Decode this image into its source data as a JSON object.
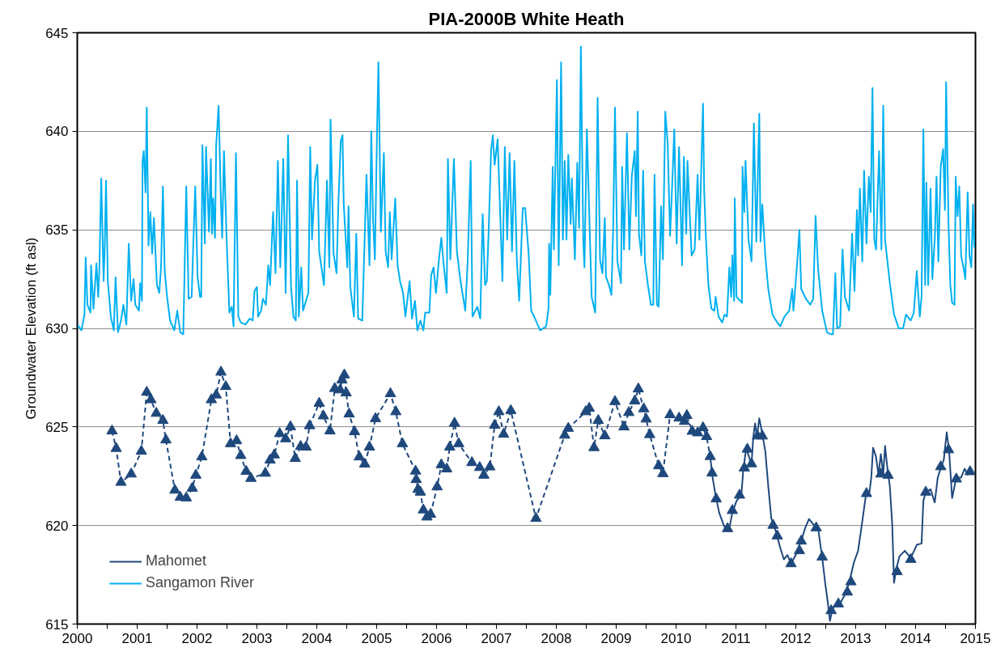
{
  "chart_data": {
    "type": "line",
    "title": "PIA-2000B White Heath",
    "ylabel": "Groundwater Elevation (ft asl)",
    "xlim": [
      2000,
      2015
    ],
    "xticks": [
      2000,
      {
        "value": 2000.5,
        "label": null
      },
      2001,
      {
        "value": 2001.5,
        "label": null
      },
      2002,
      {
        "value": 2002.5,
        "label": null
      },
      2003,
      {
        "value": 2003.5,
        "label": null
      },
      2004,
      {
        "value": 2004.5,
        "label": null
      },
      2005,
      {
        "value": 2005.5,
        "label": null
      },
      2006,
      {
        "value": 2006.5,
        "label": null
      },
      2007,
      {
        "value": 2007.5,
        "label": null
      },
      2008,
      {
        "value": 2008.5,
        "label": null
      },
      2009,
      {
        "value": 2009.5,
        "label": null
      },
      2010,
      {
        "value": 2010.5,
        "label": null
      },
      2011,
      {
        "value": 2011.5,
        "label": null
      },
      2012,
      {
        "value": 2012.5,
        "label": null
      },
      2013,
      {
        "value": 2013.5,
        "label": null
      },
      2014,
      {
        "value": 2014.5,
        "label": null
      },
      2015
    ],
    "ylim": [
      615,
      645
    ],
    "yticks": [
      615,
      620,
      625,
      630,
      635,
      640,
      645
    ],
    "grid": "y",
    "legend": "bottom left",
    "series": [
      {
        "name": "Mahomet",
        "color": "#1f497d",
        "line_style": "solid",
        "marker": "none",
        "x": [
          2010.57,
          2010.61,
          2010.66,
          2010.72,
          2010.79,
          2010.84,
          2010.89,
          2010.94,
          2011.01,
          2011.09,
          2011.12,
          2011.17,
          2011.22,
          2011.26,
          2011.29,
          2011.32,
          2011.35,
          2011.39,
          2011.44,
          2011.49,
          2011.54,
          2011.59,
          2011.66,
          2011.74,
          2011.8,
          2011.86,
          2011.92,
          2012.01,
          2012.1,
          2012.16,
          2012.22,
          2012.29,
          2012.37,
          2012.41,
          2012.44,
          2012.49,
          2012.53,
          2012.57,
          2012.61,
          2012.67,
          2012.74,
          2012.82,
          2012.89,
          2012.97,
          2013.04,
          2013.11,
          2013.17,
          2013.23,
          2013.26,
          2013.29,
          2013.34,
          2013.38,
          2013.42,
          2013.46,
          2013.49,
          2013.53,
          2013.57,
          2013.61,
          2013.64,
          2013.68,
          2013.73,
          2013.82,
          2013.92,
          2014.02,
          2014.1,
          2014.13,
          2014.17,
          2014.25,
          2014.32,
          2014.37,
          2014.42,
          2014.47,
          2014.52,
          2014.56,
          2014.61,
          2014.68,
          2014.76,
          2014.82,
          2014.87,
          2014.95
        ],
        "values": [
          623.5,
          622.43,
          621.54,
          620.65,
          620.06,
          619.76,
          619.88,
          620.65,
          621.25,
          621.54,
          622.73,
          623.92,
          623.47,
          623.1,
          624.51,
          625.18,
          624.51,
          625.43,
          624.66,
          623.77,
          621.99,
          620.36,
          619.76,
          618.87,
          618.28,
          618.5,
          618.06,
          618.58,
          619.32,
          619.91,
          620.33,
          620.06,
          619.91,
          619.02,
          618.4,
          617.09,
          616.2,
          615.16,
          615.76,
          615.98,
          616.05,
          616.5,
          617.09,
          618.13,
          618.72,
          620.21,
          621.54,
          621.69,
          622.43,
          623.95,
          623.47,
          622.58,
          623.62,
          622.58,
          624.04,
          622.88,
          621.99,
          620.06,
          617.09,
          617.83,
          618.43,
          618.72,
          618.35,
          619.02,
          619.09,
          621.25,
          621.69,
          621.84,
          621.17,
          622.43,
          622.91,
          623.32,
          624.73,
          623.77,
          621.39,
          622.43,
          622.43,
          622.88,
          622.58,
          622.73
        ]
      },
      {
        "color": "#1f497d",
        "line_style": "dashed",
        "marker": "triangle",
        "x": [
          2000.58,
          2000.65,
          2000.73,
          2000.9,
          2001.07,
          2001.16,
          2001.23,
          2001.32,
          2001.43,
          2001.48,
          2001.63,
          2001.72,
          2001.82,
          2001.92,
          2001.98,
          2002.08,
          2002.24,
          2002.32,
          2002.4,
          2002.48,
          2002.56,
          2002.66,
          2002.73,
          2002.82,
          2002.9,
          2003.14,
          2003.22,
          2003.29,
          2003.38,
          2003.48,
          2003.56,
          2003.64,
          2003.73,
          2003.82,
          2003.88,
          2004.04,
          2004.11,
          2004.22,
          2004.3,
          2004.39,
          2004.42,
          2004.46,
          2004.49,
          2004.54,
          2004.63,
          2004.71,
          2004.8,
          2004.88,
          2004.98,
          2005.23,
          2005.32,
          2005.43,
          2005.65,
          2005.66,
          2005.69,
          2005.73,
          2005.78,
          2005.84,
          2005.9,
          2006.01,
          2006.08,
          2006.17,
          2006.22,
          2006.3,
          2006.37,
          2006.59,
          2006.72,
          2006.79,
          2006.89,
          2006.97,
          2007.04,
          2007.12,
          2007.24,
          2007.66,
          2008.14,
          2008.2,
          2008.49,
          2008.55,
          2008.63,
          2008.7,
          2008.81,
          2008.98,
          2009.13,
          2009.21,
          2009.31,
          2009.37,
          2009.46,
          2009.5,
          2009.56,
          2009.71,
          2009.78,
          2009.9,
          2010.05,
          2010.14,
          2010.18,
          2010.27,
          2010.36,
          2010.45,
          2010.51,
          2010.57
        ],
        "values": [
          624.8,
          623.91,
          622.19,
          622.61,
          623.77,
          626.76,
          626.38,
          625.69,
          625.33,
          624.34,
          621.79,
          621.43,
          621.4,
          621.89,
          622.55,
          623.48,
          626.38,
          626.62,
          627.78,
          627.05,
          624.15,
          624.3,
          623.55,
          622.75,
          622.39,
          622.65,
          623.32,
          623.58,
          624.66,
          624.4,
          625.01,
          623.4,
          624.01,
          623.98,
          625.06,
          626.2,
          625.56,
          624.8,
          626.95,
          626.88,
          627.38,
          627.64,
          626.73,
          625.66,
          624.76,
          623.48,
          623.12,
          623.98,
          625.42,
          626.69,
          625.77,
          624.15,
          622.76,
          622.33,
          621.83,
          621.69,
          620.79,
          620.43,
          620.57,
          621.96,
          623.08,
          622.87,
          623.98,
          625.19,
          624.15,
          623.19,
          622.94,
          622.55,
          622.97,
          625.09,
          625.77,
          624.63,
          625.83,
          620.36,
          624.58,
          624.93,
          625.77,
          625.95,
          623.95,
          625.33,
          624.55,
          626.29,
          625.0,
          625.73,
          626.32,
          626.93,
          625.92,
          625.4,
          624.61,
          623.03,
          622.63,
          625.62,
          625.45,
          625.28,
          625.58,
          624.78,
          624.7,
          624.96,
          624.51,
          623.5
        ]
      },
      {
        "type": "scatter",
        "color": "#1f497d",
        "marker": "triangle",
        "x": [
          2010.6,
          2010.67,
          2010.86,
          2010.94,
          2011.06,
          2011.14,
          2011.19,
          2011.26,
          2011.36,
          2011.44,
          2011.62,
          2011.69,
          2011.92,
          2012.06,
          2012.09,
          2012.34,
          2012.44,
          2012.59,
          2012.71,
          2012.86,
          2012.92,
          2013.18,
          2013.42,
          2013.54,
          2013.69,
          2013.92,
          2014.17,
          2014.42,
          2014.55,
          2014.68,
          2014.91
        ],
        "values": [
          622.66,
          621.35,
          619.84,
          620.76,
          621.54,
          622.92,
          623.87,
          623.13,
          624.54,
          624.54,
          620.01,
          619.47,
          618.06,
          618.72,
          619.21,
          619.88,
          618.4,
          615.68,
          616.02,
          616.62,
          617.14,
          621.62,
          622.61,
          622.55,
          617.66,
          618.28,
          621.69,
          622.98,
          623.84,
          622.36,
          622.73
        ]
      },
      {
        "name": "Sangamon River",
        "color": "#00b0f0",
        "line_style": "solid",
        "marker": "none",
        "x": [
          2000.0,
          2000.07,
          2000.12,
          2000.14,
          2000.17,
          2000.22,
          2000.23,
          2000.27,
          2000.32,
          2000.35,
          2000.37,
          2000.4,
          2000.44,
          2000.46,
          2000.48,
          2000.51,
          2000.56,
          2000.61,
          2000.64,
          2000.68,
          2000.73,
          2000.77,
          2000.82,
          2000.86,
          2000.9,
          2000.94,
          2000.97,
          2001.03,
          2001.05,
          2001.08,
          2001.09,
          2001.11,
          2001.14,
          2001.16,
          2001.19,
          2001.22,
          2001.25,
          2001.28,
          2001.33,
          2001.37,
          2001.4,
          2001.43,
          2001.46,
          2001.5,
          2001.55,
          2001.62,
          2001.67,
          2001.72,
          2001.77,
          2001.79,
          2001.82,
          2001.86,
          2001.91,
          2001.94,
          2001.97,
          2002.01,
          2002.05,
          2002.07,
          2002.09,
          2002.13,
          2002.15,
          2002.2,
          2002.23,
          2002.25,
          2002.27,
          2002.3,
          2002.32,
          2002.36,
          2002.4,
          2002.42,
          2002.45,
          2002.49,
          2002.54,
          2002.58,
          2002.61,
          2002.65,
          2002.69,
          2002.73,
          2002.81,
          2002.88,
          2002.93,
          2002.96,
          2003.0,
          2003.02,
          2003.07,
          2003.1,
          2003.15,
          2003.19,
          2003.22,
          2003.27,
          2003.31,
          2003.35,
          2003.39,
          2003.44,
          2003.48,
          2003.52,
          2003.57,
          2003.61,
          2003.65,
          2003.67,
          2003.7,
          2003.74,
          2003.77,
          2003.82,
          2003.86,
          2003.89,
          2003.92,
          2003.97,
          2004.01,
          2004.04,
          2004.12,
          2004.17,
          2004.21,
          2004.23,
          2004.28,
          2004.33,
          2004.36,
          2004.4,
          2004.43,
          2004.45,
          2004.51,
          2004.53,
          2004.56,
          2004.62,
          2004.66,
          2004.69,
          2004.76,
          2004.83,
          2004.88,
          2004.91,
          2004.94,
          2004.97,
          2005.01,
          2005.03,
          2005.07,
          2005.12,
          2005.15,
          2005.19,
          2005.22,
          2005.25,
          2005.31,
          2005.35,
          2005.39,
          2005.44,
          2005.48,
          2005.55,
          2005.59,
          2005.64,
          2005.68,
          2005.73,
          2005.78,
          2005.81,
          2005.88,
          2005.91,
          2005.95,
          2005.99,
          2006.04,
          2006.08,
          2006.12,
          2006.17,
          2006.19,
          2006.23,
          2006.29,
          2006.34,
          2006.4,
          2006.48,
          2006.52,
          2006.57,
          2006.6,
          2006.68,
          2006.73,
          2006.77,
          2006.81,
          2006.84,
          2006.87,
          2006.91,
          2006.94,
          2006.97,
          2007.02,
          2007.06,
          2007.1,
          2007.14,
          2007.18,
          2007.22,
          2007.26,
          2007.3,
          2007.34,
          2007.38,
          2007.44,
          2007.48,
          2007.54,
          2007.58,
          2007.63,
          2007.73,
          2007.83,
          2007.87,
          2007.88,
          2007.9,
          2007.94,
          2007.96,
          2008.01,
          2008.04,
          2008.08,
          2008.11,
          2008.14,
          2008.17,
          2008.2,
          2008.24,
          2008.26,
          2008.31,
          2008.35,
          2008.38,
          2008.41,
          2008.45,
          2008.47,
          2008.51,
          2008.54,
          2008.59,
          2008.65,
          2008.69,
          2008.73,
          2008.77,
          2008.81,
          2008.83,
          2008.88,
          2008.92,
          2008.95,
          2008.98,
          2009.02,
          2009.08,
          2009.1,
          2009.13,
          2009.18,
          2009.22,
          2009.26,
          2009.31,
          2009.33,
          2009.36,
          2009.38,
          2009.42,
          2009.45,
          2009.48,
          2009.53,
          2009.58,
          2009.62,
          2009.64,
          2009.68,
          2009.71,
          2009.75,
          2009.78,
          2009.82,
          2009.86,
          2009.9,
          2009.93,
          2009.97,
          2010.01,
          2010.05,
          2010.1,
          2010.13,
          2010.17,
          2010.19,
          2010.23,
          2010.26,
          2010.31,
          2010.36,
          2010.39,
          2010.42,
          2010.45,
          2010.47,
          2010.5,
          2010.54,
          2010.59,
          2010.64,
          2010.66,
          2010.71,
          2010.77,
          2010.81,
          2010.85,
          2010.89,
          2010.92,
          2010.94,
          2010.97,
          2010.98,
          2011.01,
          2011.1,
          2011.11,
          2011.14,
          2011.16,
          2011.21,
          2011.26,
          2011.3,
          2011.34,
          2011.39,
          2011.41,
          2011.44,
          2011.49,
          2011.54,
          2011.61,
          2011.69,
          2011.74,
          2011.81,
          2011.89,
          2011.94,
          2011.96,
          2012.02,
          2012.06,
          2012.09,
          2012.17,
          2012.24,
          2012.29,
          2012.33,
          2012.37,
          2012.44,
          2012.52,
          2012.59,
          2012.62,
          2012.66,
          2012.69,
          2012.74,
          2012.78,
          2012.82,
          2012.89,
          2012.94,
          2012.98,
          2013.02,
          2013.04,
          2013.07,
          2013.11,
          2013.14,
          2013.18,
          2013.22,
          2013.25,
          2013.28,
          2013.31,
          2013.34,
          2013.39,
          2013.43,
          2013.46,
          2013.49,
          2013.57,
          2013.64,
          2013.72,
          2013.79,
          2013.84,
          2013.92,
          2013.97,
          2014.02,
          2014.07,
          2014.1,
          2014.13,
          2014.16,
          2014.18,
          2014.21,
          2014.25,
          2014.28,
          2014.32,
          2014.35,
          2014.38,
          2014.42,
          2014.46,
          2014.49,
          2014.51,
          2014.55,
          2014.58,
          2014.61,
          2014.65,
          2014.67,
          2014.7,
          2014.73,
          2014.76,
          2014.8,
          2014.83,
          2014.87,
          2014.9,
          2014.93,
          2014.96,
          2014.98
        ],
        "values": [
          630.2,
          629.9,
          630.7,
          633.6,
          631.2,
          630.8,
          633.2,
          631.0,
          633.3,
          631.6,
          633.1,
          637.6,
          632.4,
          634.3,
          637.5,
          632.4,
          630.6,
          629.9,
          632.6,
          629.8,
          630.4,
          631.2,
          630.2,
          634.3,
          631.4,
          632.5,
          631.2,
          630.9,
          632.3,
          631.4,
          638.5,
          639.0,
          636.9,
          641.2,
          634.2,
          635.9,
          633.8,
          635.6,
          632.2,
          631.8,
          633.2,
          637.2,
          632.9,
          631.6,
          630.4,
          629.9,
          630.9,
          629.8,
          629.7,
          632.6,
          637.2,
          631.5,
          631.6,
          634.5,
          637.2,
          632.6,
          631.6,
          631.6,
          639.3,
          634.3,
          639.2,
          634.9,
          638.6,
          634.8,
          636.6,
          634.6,
          639.3,
          641.3,
          636.3,
          634.6,
          639.0,
          634.9,
          630.8,
          631.1,
          630.1,
          638.9,
          630.6,
          630.3,
          630.2,
          630.5,
          630.4,
          631.9,
          632.1,
          630.6,
          630.9,
          631.5,
          631.2,
          633.2,
          632.2,
          635.9,
          632.8,
          638.5,
          633.1,
          638.6,
          631.8,
          639.8,
          632.1,
          630.6,
          630.4,
          637.5,
          630.6,
          633.1,
          630.9,
          631.4,
          631.8,
          639.2,
          634.5,
          637.5,
          638.3,
          633.9,
          632.2,
          637.5,
          633.1,
          640.6,
          633.8,
          632.8,
          636.3,
          639.5,
          639.8,
          636.3,
          633.1,
          636.2,
          632.1,
          630.6,
          634.8,
          630.5,
          630.4,
          637.8,
          633.2,
          640.0,
          635.5,
          633.5,
          640.6,
          643.5,
          634.9,
          638.9,
          633.9,
          633.1,
          635.9,
          633.5,
          636.6,
          633.2,
          632.4,
          631.8,
          630.6,
          632.4,
          630.5,
          631.4,
          629.9,
          630.4,
          629.9,
          630.8,
          630.8,
          632.7,
          633.1,
          631.8,
          633.5,
          634.6,
          633.2,
          631.8,
          638.6,
          633.5,
          638.6,
          633.9,
          632.4,
          630.9,
          633.4,
          638.5,
          630.6,
          631.1,
          630.5,
          635.8,
          632.2,
          632.4,
          634.9,
          639.0,
          639.8,
          638.3,
          639.6,
          636.1,
          632.4,
          639.2,
          634.5,
          638.9,
          633.9,
          638.5,
          633.5,
          631.4,
          636.1,
          636.1,
          633.7,
          630.9,
          630.6,
          629.9,
          630.1,
          631.0,
          634.3,
          631.7,
          638.2,
          634.0,
          642.6,
          633.2,
          643.5,
          634.5,
          638.5,
          634.5,
          638.8,
          635.3,
          637.6,
          633.5,
          638.4,
          635.1,
          644.3,
          634.5,
          633.1,
          640.1,
          636.9,
          631.6,
          630.8,
          641.7,
          633.5,
          632.8,
          635.6,
          632.6,
          632.2,
          631.7,
          635.1,
          641.2,
          633.4,
          632.3,
          638.2,
          634.0,
          639.9,
          634.0,
          637.7,
          639.0,
          635.7,
          641.0,
          634.8,
          633.7,
          638.0,
          633.4,
          632.2,
          631.2,
          631.2,
          637.8,
          631.2,
          631.1,
          636.2,
          633.5,
          641.0,
          639.4,
          634.7,
          636.9,
          640.1,
          634.3,
          639.2,
          633.2,
          638.7,
          634.8,
          638.5,
          635.7,
          633.7,
          634.0,
          637.8,
          634.5,
          638.0,
          641.4,
          636.9,
          634.5,
          632.2,
          631.0,
          630.9,
          631.6,
          630.6,
          630.3,
          630.7,
          630.6,
          633.1,
          631.6,
          633.7,
          631.4,
          636.6,
          631.6,
          631.3,
          638.2,
          635.9,
          638.5,
          634.5,
          633.4,
          640.4,
          634.4,
          640.9,
          634.4,
          636.3,
          633.7,
          632.0,
          630.7,
          630.3,
          630.1,
          630.6,
          630.9,
          632.0,
          630.9,
          633.2,
          635.0,
          632.0,
          631.5,
          631.2,
          631.5,
          635.7,
          633.1,
          630.9,
          629.8,
          629.7,
          629.7,
          632.8,
          630.0,
          630.1,
          634.0,
          631.6,
          630.9,
          634.8,
          631.9,
          636.0,
          633.7,
          637.1,
          633.4,
          638.0,
          634.3,
          637.7,
          635.9,
          642.2,
          634.5,
          634.0,
          639.0,
          634.0,
          641.3,
          634.5,
          632.3,
          630.7,
          630.0,
          630.0,
          630.7,
          630.4,
          630.8,
          632.9,
          630.6,
          631.6,
          640.1,
          632.2,
          637.4,
          632.2,
          637.1,
          632.5,
          634.5,
          637.7,
          633.4,
          638.2,
          639.1,
          636.0,
          642.5,
          635.3,
          632.2,
          631.3,
          631.2,
          637.7,
          635.7,
          637.2,
          633.7,
          633.1,
          632.5,
          636.9,
          633.7,
          633.1,
          636.3,
          634.1
        ]
      }
    ]
  }
}
